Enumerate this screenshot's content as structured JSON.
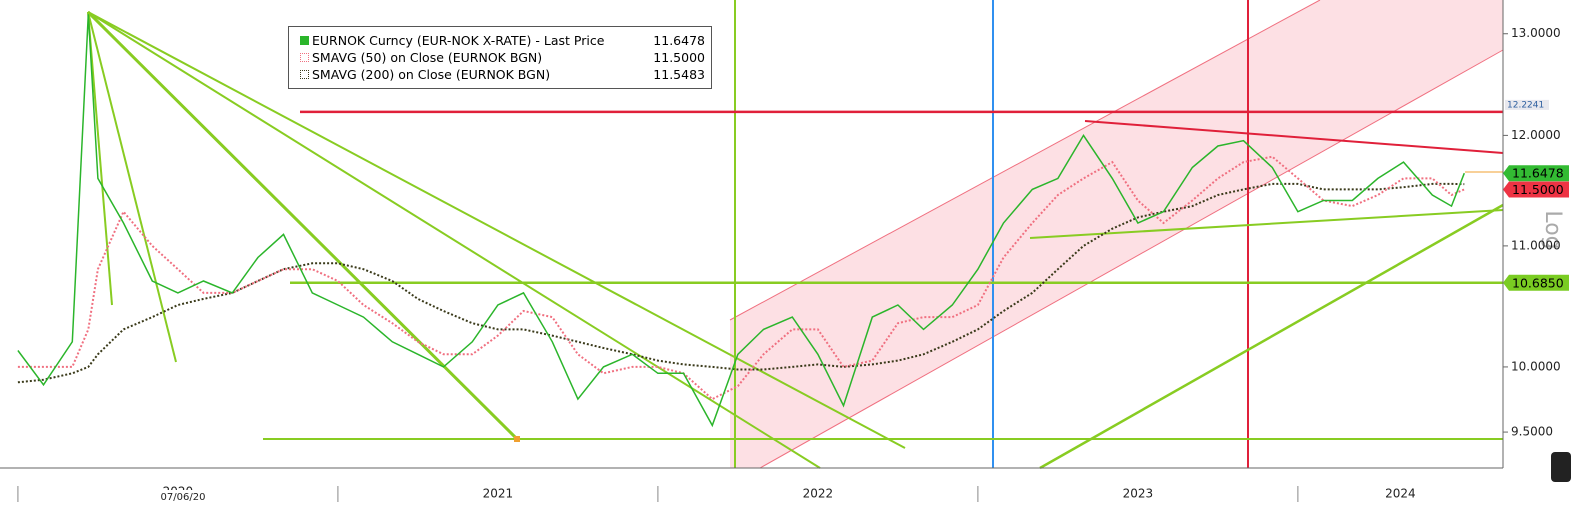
{
  "chart_data": {
    "type": "line",
    "log_scale": true,
    "x": [
      2020.0,
      2020.08,
      2020.17,
      2020.22,
      2020.25,
      2020.33,
      2020.42,
      2020.5,
      2020.58,
      2020.67,
      2020.75,
      2020.83,
      2020.92,
      2021.0,
      2021.08,
      2021.17,
      2021.25,
      2021.33,
      2021.42,
      2021.5,
      2021.58,
      2021.67,
      2021.75,
      2021.83,
      2021.92,
      2022.0,
      2022.08,
      2022.17,
      2022.25,
      2022.33,
      2022.42,
      2022.5,
      2022.58,
      2022.67,
      2022.75,
      2022.83,
      2022.92,
      2023.0,
      2023.08,
      2023.17,
      2023.25,
      2023.33,
      2023.42,
      2023.5,
      2023.58,
      2023.67,
      2023.75,
      2023.83,
      2023.92,
      2024.0,
      2024.08,
      2024.17,
      2024.25,
      2024.33,
      2024.42,
      2024.48,
      2024.52
    ],
    "series": [
      {
        "name": "EURNOK Curncy (EUR-NOK X-RATE) - Last Price",
        "color": "#2bb52b",
        "style": "solid",
        "last_price": 11.6478,
        "values": [
          10.13,
          9.86,
          10.2,
          13.2,
          11.6,
          11.2,
          10.7,
          10.6,
          10.7,
          10.6,
          10.9,
          11.1,
          10.6,
          10.5,
          10.4,
          10.2,
          10.1,
          10.0,
          10.2,
          10.5,
          10.6,
          10.2,
          9.75,
          10.0,
          10.1,
          9.95,
          9.95,
          9.55,
          10.1,
          10.3,
          10.4,
          10.1,
          9.7,
          10.4,
          10.5,
          10.3,
          10.5,
          10.8,
          11.2,
          11.5,
          11.6,
          12.0,
          11.6,
          11.2,
          11.3,
          11.7,
          11.9,
          11.95,
          11.7,
          11.3,
          11.4,
          11.4,
          11.6,
          11.75,
          11.45,
          11.35,
          11.6478
        ]
      },
      {
        "name": "SMAVG (50)  on Close (EURNOK BGN)",
        "color": "#f07080",
        "style": "dotted",
        "last_price": {
          "value": 11.5,
          "label": "11.5000"
        },
        "values": [
          10.0,
          10.0,
          10.0,
          10.3,
          10.8,
          11.3,
          11.0,
          10.8,
          10.6,
          10.6,
          10.7,
          10.8,
          10.8,
          10.7,
          10.5,
          10.35,
          10.2,
          10.1,
          10.1,
          10.25,
          10.45,
          10.4,
          10.1,
          9.95,
          10.0,
          10.0,
          9.95,
          9.75,
          9.85,
          10.1,
          10.3,
          10.3,
          10.0,
          10.05,
          10.35,
          10.4,
          10.4,
          10.5,
          10.9,
          11.2,
          11.45,
          11.6,
          11.75,
          11.4,
          11.2,
          11.4,
          11.6,
          11.75,
          11.8,
          11.6,
          11.4,
          11.35,
          11.45,
          11.6,
          11.6,
          11.45,
          11.5
        ]
      },
      {
        "name": "SMAVG (200)  on Close (EURNOK BGN)",
        "color": "#3a3a1a",
        "style": "dotted",
        "last_price": 11.5483,
        "values": [
          9.88,
          9.9,
          9.95,
          10.0,
          10.1,
          10.3,
          10.4,
          10.5,
          10.55,
          10.6,
          10.7,
          10.8,
          10.85,
          10.85,
          10.8,
          10.7,
          10.55,
          10.45,
          10.35,
          10.3,
          10.3,
          10.25,
          10.2,
          10.15,
          10.1,
          10.05,
          10.02,
          10.0,
          9.98,
          9.98,
          10.0,
          10.02,
          10.0,
          10.02,
          10.05,
          10.1,
          10.2,
          10.3,
          10.45,
          10.6,
          10.8,
          11.0,
          11.15,
          11.25,
          11.3,
          11.35,
          11.45,
          11.5,
          11.55,
          11.55,
          11.5,
          11.5,
          11.5,
          11.52,
          11.55,
          11.55,
          11.5483
        ]
      }
    ],
    "xlim": [
      2019.944,
      2024.641
    ],
    "xticks": [
      2020,
      2021,
      2022,
      2023,
      2024
    ],
    "ylim": [
      9.235,
      13.35
    ],
    "yticks": [
      {
        "value": 9.5,
        "label": "9.5000"
      },
      {
        "value": 10,
        "label": "10.0000"
      },
      {
        "value": 11,
        "label": "11.0000"
      },
      {
        "value": 12,
        "label": "12.0000"
      },
      {
        "value": 13,
        "label": "13.0000"
      }
    ],
    "price_tags": [
      {
        "value": 12.2241,
        "color": "#e8e8ee",
        "text_color": "#3060a0"
      },
      {
        "value": 11.6478,
        "color": "#33bb33",
        "text_color": "#000000"
      },
      {
        "value": {
          "value": 11.5,
          "label": "11.5000"
        },
        "color": "#ee3344",
        "text_color": "#000000"
      },
      {
        "value": {
          "value": 10.685,
          "label": "10.6850"
        },
        "color": "#7acc22",
        "text_color": "#000000"
      }
    ],
    "cursor_label": "07/06/20",
    "scale_label": "Log"
  }
}
